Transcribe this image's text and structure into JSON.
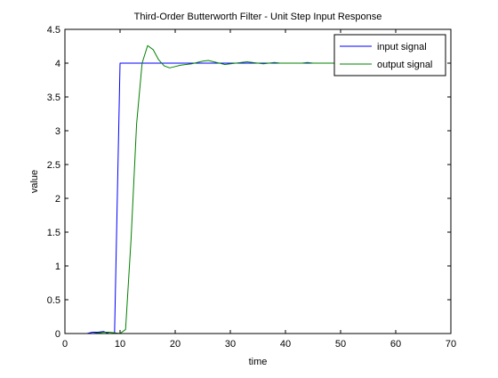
{
  "chart_data": {
    "type": "line",
    "title": "Third-Order Butterworth Filter - Unit Step Input Response",
    "xlabel": "time",
    "ylabel": "value",
    "xlim": [
      0,
      70
    ],
    "ylim": [
      0,
      4.5
    ],
    "xticks": [
      0,
      10,
      20,
      30,
      40,
      50,
      60,
      70
    ],
    "yticks": [
      0,
      0.5,
      1,
      1.5,
      2,
      2.5,
      3,
      3.5,
      4,
      4.5
    ],
    "xtick_labels": [
      "0",
      "10",
      "20",
      "30",
      "40",
      "50",
      "60",
      "70"
    ],
    "ytick_labels": [
      "0",
      "0.5",
      "1",
      "1.5",
      "2",
      "2.5",
      "3",
      "3.5",
      "4",
      "4.5"
    ],
    "grid": false,
    "legend_position": "top-right",
    "series": [
      {
        "name": "input signal",
        "color": "#0000ff",
        "x": [
          0,
          1,
          2,
          3,
          4,
          5,
          6,
          7,
          8,
          9,
          10,
          11,
          12,
          13,
          14,
          15,
          16,
          17,
          18,
          19,
          20,
          21,
          22,
          23,
          24,
          25,
          26,
          27,
          28,
          29,
          30,
          31,
          32,
          33,
          34,
          35,
          36,
          37,
          38,
          39,
          40,
          41,
          42,
          43,
          44,
          45,
          46,
          47,
          48,
          49,
          50
        ],
        "y": [
          0,
          0,
          0,
          0,
          0,
          0.02,
          0.02,
          0.03,
          0,
          0,
          4,
          4,
          4,
          4,
          4,
          4,
          4,
          4,
          4,
          4,
          4,
          4,
          4,
          4,
          4,
          4,
          4,
          4,
          4,
          4,
          4,
          4,
          4,
          4,
          4,
          4,
          4,
          4,
          4,
          4,
          4,
          4,
          4,
          4,
          4,
          4,
          4,
          4,
          4,
          4,
          4
        ]
      },
      {
        "name": "output signal",
        "color": "#008000",
        "x": [
          0,
          1,
          2,
          3,
          4,
          5,
          6,
          7,
          8,
          9,
          10,
          11,
          12,
          13,
          14,
          15,
          16,
          17,
          18,
          19,
          20,
          21,
          22,
          23,
          24,
          25,
          26,
          27,
          28,
          29,
          30,
          31,
          32,
          33,
          34,
          35,
          36,
          37,
          38,
          39,
          40,
          41,
          42,
          43,
          44,
          45,
          46,
          47,
          48,
          49,
          50
        ],
        "y": [
          0,
          0,
          0,
          0,
          0,
          0,
          0.01,
          0.02,
          0.02,
          0.01,
          0,
          0.06,
          1.4,
          3.1,
          4.0,
          4.26,
          4.2,
          4.05,
          3.96,
          3.93,
          3.95,
          3.97,
          3.98,
          3.99,
          4.01,
          4.03,
          4.04,
          4.02,
          4.0,
          3.98,
          3.99,
          4.0,
          4.01,
          4.02,
          4.01,
          4.0,
          3.99,
          4.0,
          4.01,
          4.0,
          4.0,
          4.0,
          4.0,
          4.0,
          4.01,
          4.0,
          4.0,
          4.0,
          4.0,
          4.0,
          4.0
        ]
      }
    ]
  }
}
